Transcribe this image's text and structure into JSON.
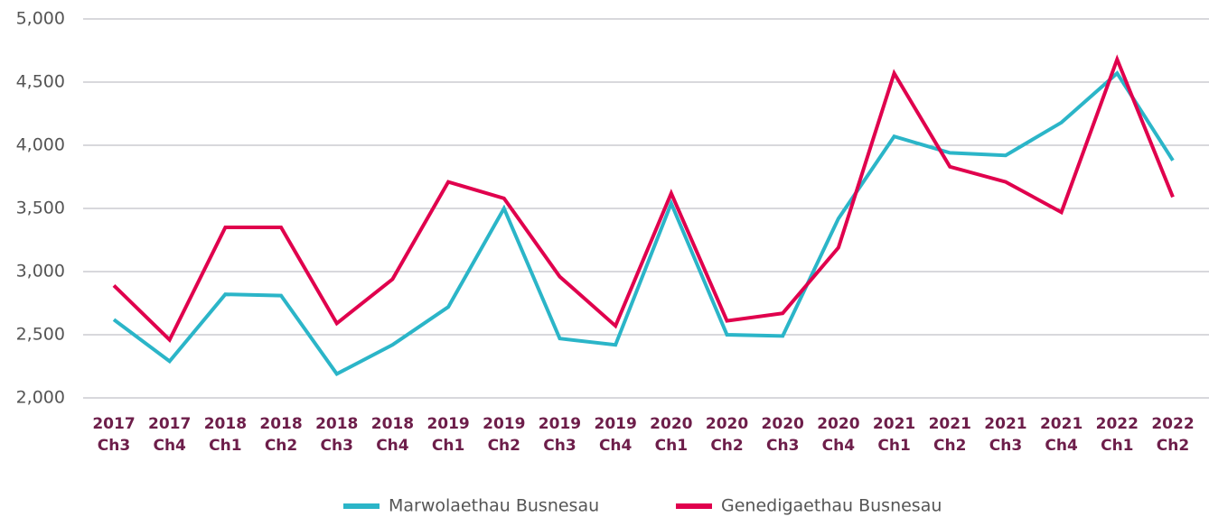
{
  "chart_data": {
    "type": "line",
    "categories": [
      [
        "2017",
        "Ch3"
      ],
      [
        "2017",
        "Ch4"
      ],
      [
        "2018",
        "Ch1"
      ],
      [
        "2018",
        "Ch2"
      ],
      [
        "2018",
        "Ch3"
      ],
      [
        "2018",
        "Ch4"
      ],
      [
        "2019",
        "Ch1"
      ],
      [
        "2019",
        "Ch2"
      ],
      [
        "2019",
        "Ch3"
      ],
      [
        "2019",
        "Ch4"
      ],
      [
        "2020",
        "Ch1"
      ],
      [
        "2020",
        "Ch2"
      ],
      [
        "2020",
        "Ch3"
      ],
      [
        "2020",
        "Ch4"
      ],
      [
        "2021",
        "Ch1"
      ],
      [
        "2021",
        "Ch2"
      ],
      [
        "2021",
        "Ch3"
      ],
      [
        "2021",
        "Ch4"
      ],
      [
        "2022",
        "Ch1"
      ],
      [
        "2022",
        "Ch2"
      ]
    ],
    "series": [
      {
        "name": "Marwolaethau Busnesau",
        "color": "#2bb5c8",
        "values": [
          2620,
          2290,
          2820,
          2810,
          2190,
          2420,
          2720,
          3500,
          2470,
          2420,
          3540,
          2500,
          2490,
          3420,
          4070,
          3940,
          3920,
          4180,
          4570,
          3880
        ]
      },
      {
        "name": "Genedigaethau Busnesau",
        "color": "#e0004d",
        "values": [
          2890,
          2460,
          3350,
          3350,
          2590,
          2940,
          3710,
          3580,
          2960,
          2570,
          3620,
          2610,
          2670,
          3190,
          4570,
          3830,
          3710,
          3470,
          4680,
          3590
        ]
      }
    ],
    "ylim": [
      2000,
      5000
    ],
    "yticks": [
      {
        "value": 2000,
        "label": "2,000"
      },
      {
        "value": 2500,
        "label": "2,500"
      },
      {
        "value": 3000,
        "label": "3,000"
      },
      {
        "value": 3500,
        "label": "3,500"
      },
      {
        "value": 4000,
        "label": "4,000"
      },
      {
        "value": 4500,
        "label": "4,500"
      },
      {
        "value": 5000,
        "label": "5,000"
      }
    ],
    "grid": true,
    "legend": "bottom"
  }
}
